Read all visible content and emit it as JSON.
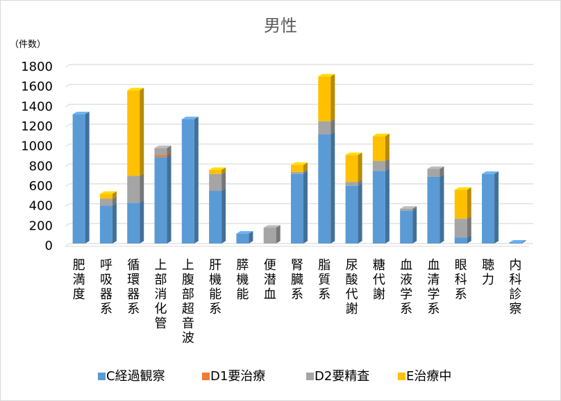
{
  "chart_data": {
    "type": "bar",
    "stacked": true,
    "title": "男性",
    "y_unit_label": "（件数）",
    "ylim": [
      0,
      1800
    ],
    "yticks": [
      "0",
      "200",
      "400",
      "600",
      "800",
      "1000",
      "1200",
      "1400",
      "1600",
      "1800"
    ],
    "grid": true,
    "legend_position": "bottom",
    "categories": [
      "肥満度",
      "呼吸器系",
      "循環器系",
      "上部消化管",
      "上腹部超音波",
      "肝機能系",
      "膵機能",
      "便潜血",
      "腎臓系",
      "脂質系",
      "尿酸代謝",
      "糖代謝",
      "血液学系",
      "血清学系",
      "眼科系",
      "聴力",
      "内科診察"
    ],
    "series": [
      {
        "name": "C経過観察",
        "color": "#5b9bd5",
        "values": [
          1300,
          380,
          410,
          870,
          1250,
          530,
          100,
          0,
          700,
          1100,
          580,
          730,
          330,
          670,
          60,
          700,
          10
        ]
      },
      {
        "name": "D1要治療",
        "color": "#ed7d31",
        "values": [
          0,
          0,
          0,
          20,
          0,
          0,
          0,
          0,
          0,
          0,
          0,
          0,
          0,
          0,
          0,
          0,
          0
        ]
      },
      {
        "name": "D2要精査",
        "color": "#a5a5a5",
        "values": [
          0,
          70,
          270,
          70,
          0,
          170,
          0,
          160,
          20,
          130,
          40,
          100,
          20,
          80,
          190,
          0,
          0
        ]
      },
      {
        "name": "E治療中",
        "color": "#ffc000",
        "values": [
          0,
          50,
          860,
          0,
          0,
          40,
          0,
          0,
          70,
          450,
          270,
          250,
          0,
          0,
          290,
          0,
          0
        ]
      }
    ]
  }
}
